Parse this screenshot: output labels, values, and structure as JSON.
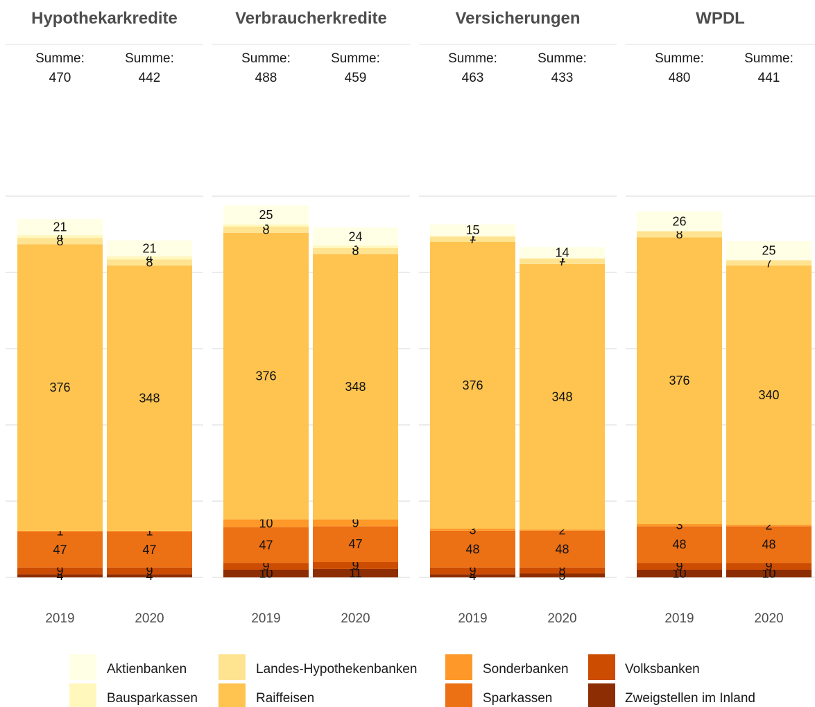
{
  "chart_data": {
    "type": "bar",
    "stacked": true,
    "categories": [
      "2019",
      "2020"
    ],
    "sum_label": "Summe:",
    "ylim": [
      0,
      500
    ],
    "grid": true,
    "legend_position": "bottom",
    "series": [
      {
        "name": "Zweigstellen im Inland",
        "color": "#8c2d04"
      },
      {
        "name": "Volksbanken",
        "color": "#cc4c02"
      },
      {
        "name": "Sparkassen",
        "color": "#ec7014"
      },
      {
        "name": "Sonderbanken",
        "color": "#fe9929"
      },
      {
        "name": "Raiffeisen",
        "color": "#fec44f"
      },
      {
        "name": "Landes-Hypothekenbanken",
        "color": "#fee391"
      },
      {
        "name": "Bausparkassen",
        "color": "#fff7bc"
      },
      {
        "name": "Aktienbanken",
        "color": "#ffffe5"
      }
    ],
    "legend_order": [
      "Aktienbanken",
      "Bausparkassen",
      "Landes-Hypothekenbanken",
      "Raiffeisen",
      "Sonderbanken",
      "Sparkassen",
      "Volksbanken",
      "Zweigstellen im Inland"
    ],
    "facets": [
      {
        "title": "Hypothekarkredite",
        "totals": [
          "470",
          "442"
        ],
        "values": {
          "2019": {
            "Zweigstellen im Inland": 4,
            "Volksbanken": 9,
            "Sparkassen": 47,
            "Sonderbanken": 1,
            "Raiffeisen": 376,
            "Landes-Hypothekenbanken": 8,
            "Bausparkassen": 4,
            "Aktienbanken": 21
          },
          "2020": {
            "Zweigstellen im Inland": 4,
            "Volksbanken": 9,
            "Sparkassen": 47,
            "Sonderbanken": 1,
            "Raiffeisen": 348,
            "Landes-Hypothekenbanken": 8,
            "Bausparkassen": 4,
            "Aktienbanken": 21
          }
        }
      },
      {
        "title": "Verbraucherkredite",
        "totals": [
          "488",
          "459"
        ],
        "values": {
          "2019": {
            "Zweigstellen im Inland": 10,
            "Volksbanken": 9,
            "Sparkassen": 47,
            "Sonderbanken": 10,
            "Raiffeisen": 376,
            "Landes-Hypothekenbanken": 8,
            "Bausparkassen": 3,
            "Aktienbanken": 25
          },
          "2020": {
            "Zweigstellen im Inland": 11,
            "Volksbanken": 9,
            "Sparkassen": 47,
            "Sonderbanken": 9,
            "Raiffeisen": 348,
            "Landes-Hypothekenbanken": 8,
            "Bausparkassen": 3,
            "Aktienbanken": 24
          }
        }
      },
      {
        "title": "Versicherungen",
        "totals": [
          "463",
          "433"
        ],
        "values": {
          "2019": {
            "Zweigstellen im Inland": 4,
            "Volksbanken": 9,
            "Sparkassen": 48,
            "Sonderbanken": 3,
            "Raiffeisen": 376,
            "Landes-Hypothekenbanken": 7,
            "Bausparkassen": 1,
            "Aktienbanken": 15
          },
          "2020": {
            "Zweigstellen im Inland": 5,
            "Volksbanken": 8,
            "Sparkassen": 48,
            "Sonderbanken": 2,
            "Raiffeisen": 348,
            "Landes-Hypothekenbanken": 7,
            "Bausparkassen": 1,
            "Aktienbanken": 14
          }
        }
      },
      {
        "title": "WPDL",
        "totals": [
          "480",
          "441"
        ],
        "values": {
          "2019": {
            "Zweigstellen im Inland": 10,
            "Volksbanken": 9,
            "Sparkassen": 48,
            "Sonderbanken": 3,
            "Raiffeisen": 376,
            "Landes-Hypothekenbanken": 8,
            "Aktienbanken": 26
          },
          "2020": {
            "Zweigstellen im Inland": 10,
            "Volksbanken": 9,
            "Sparkassen": 48,
            "Sonderbanken": 2,
            "Raiffeisen": 340,
            "Landes-Hypothekenbanken": 7,
            "Aktienbanken": 25
          }
        }
      }
    ]
  }
}
